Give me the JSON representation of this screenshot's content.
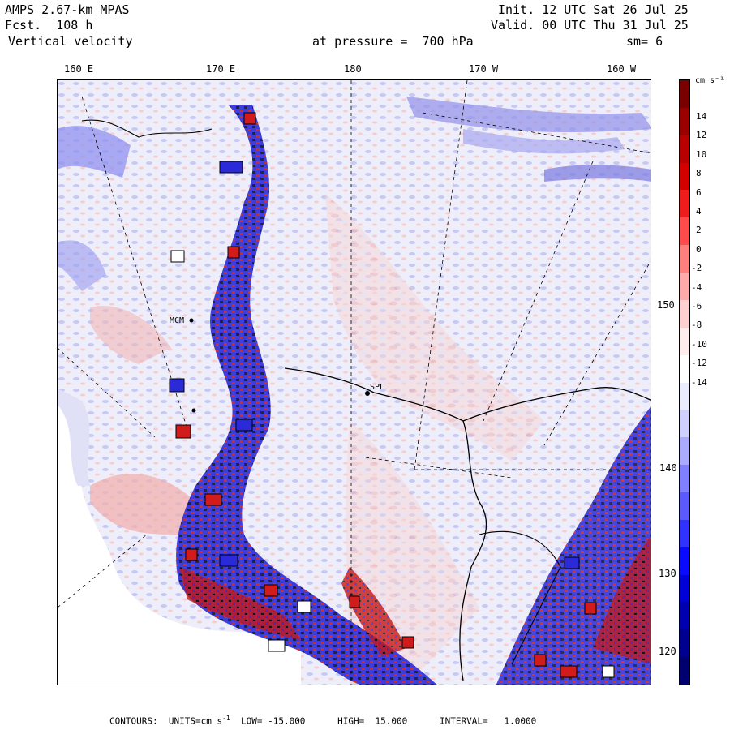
{
  "header": {
    "model": "AMPS 2.67-km MPAS",
    "fcst": "Fcst.  108 h",
    "field": "Vertical velocity",
    "level": "at pressure =  700 hPa",
    "init": "Init. 12 UTC Sat 26 Jul 25",
    "valid": "Valid. 00 UTC Thu 31 Jul 25",
    "smooth": "sm= 6"
  },
  "longitude_labels": [
    "160 E",
    "170 E",
    "180",
    "170 W",
    "160 W"
  ],
  "latitude_labels": [
    "150 W",
    "140 W",
    "130 W",
    "120 W"
  ],
  "colorbar": {
    "unit": "cm s⁻¹",
    "labels": [
      "14",
      "12",
      "10",
      "8",
      "6",
      "4",
      "2",
      "0",
      "-2",
      "-4",
      "-6",
      "-8",
      "-10",
      "-12",
      "-14"
    ],
    "colors": [
      "#7a0000",
      "#9b0000",
      "#b80000",
      "#d40000",
      "#ee1c1c",
      "#ff4b4b",
      "#ff7f7f",
      "#ffaaaa",
      "#ffd0d0",
      "#ffecec",
      "#ffffff",
      "#ececff",
      "#d0d0ff",
      "#aaaaff",
      "#8080ff",
      "#5a5aff",
      "#3232ff",
      "#0a0aff",
      "#0000d8",
      "#0000b0",
      "#000090",
      "#000070"
    ]
  },
  "footer": {
    "contours": "CONTOURS:  UNITS=cm s",
    "unit_exp": "-1",
    "range": "  LOW= -15.000      HIGH=  15.000      INTERVAL=   1.0000"
  },
  "map": {
    "station_label": "MCM",
    "site_label": "SPL",
    "colors": {
      "up": "#d21c1c",
      "down": "#2a2ad8",
      "light_up": "#f6cccc",
      "light_down": "#c8c8f4",
      "background": "#eeeefa"
    }
  }
}
